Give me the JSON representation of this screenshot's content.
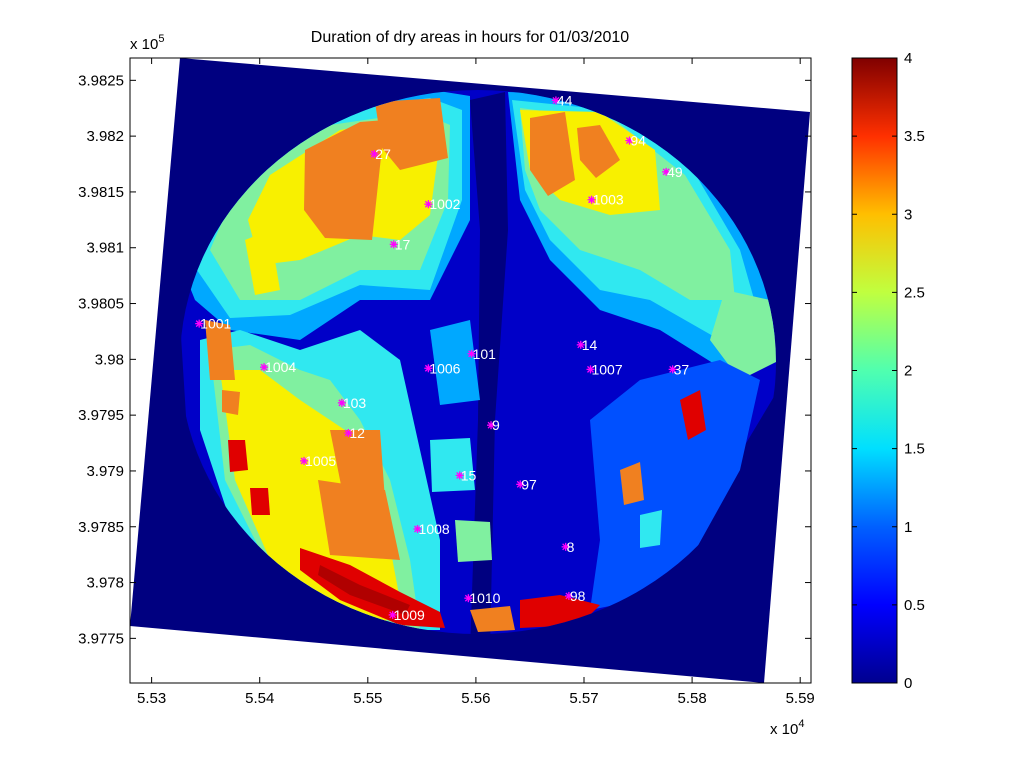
{
  "chart_data": {
    "type": "heatmap",
    "title": "Duration of dry areas in hours for 01/03/2010",
    "xlabel": "",
    "ylabel": "",
    "x_multiplier": {
      "base": "x 10",
      "exponent": "4"
    },
    "y_multiplier": {
      "base": "x 10",
      "exponent": "5"
    },
    "xlim": [
      5.528,
      5.591
    ],
    "ylim": [
      3.9771,
      3.9827
    ],
    "x_ticks": [
      5.53,
      5.54,
      5.55,
      5.56,
      5.57,
      5.58,
      5.59
    ],
    "x_tick_labels": [
      "5.53",
      "5.54",
      "5.55",
      "5.56",
      "5.57",
      "5.58",
      "5.59"
    ],
    "y_ticks": [
      3.9775,
      3.978,
      3.9785,
      3.979,
      3.9795,
      3.98,
      3.9805,
      3.981,
      3.9815,
      3.982,
      3.9825
    ],
    "y_tick_labels": [
      "3.9775",
      "3.978",
      "3.9785",
      "3.979",
      "3.9795",
      "3.98",
      "3.9805",
      "3.981",
      "3.9815",
      "3.982",
      "3.9825"
    ],
    "colorbar": {
      "colormap": "jet",
      "range": [
        0,
        4
      ],
      "ticks": [
        0,
        0.5,
        1,
        1.5,
        2,
        2.5,
        3,
        3.5,
        4
      ],
      "tick_labels": [
        "0",
        "0.5",
        "1",
        "1.5",
        "2",
        "2.5",
        "3",
        "3.5",
        "4"
      ]
    },
    "grid": false,
    "stations": [
      {
        "label": "44",
        "x": 5.5674,
        "y": 3.98232
      },
      {
        "label": "94",
        "x": 5.5742,
        "y": 3.98196
      },
      {
        "label": "27",
        "x": 5.5506,
        "y": 3.98184
      },
      {
        "label": "49",
        "x": 5.5776,
        "y": 3.98168
      },
      {
        "label": "1002",
        "x": 5.5556,
        "y": 3.98139
      },
      {
        "label": "1003",
        "x": 5.5707,
        "y": 3.98143
      },
      {
        "label": "17",
        "x": 5.5524,
        "y": 3.98103
      },
      {
        "label": "1001",
        "x": 5.5344,
        "y": 3.98032
      },
      {
        "label": "14",
        "x": 5.5697,
        "y": 3.98013
      },
      {
        "label": "101",
        "x": 5.5596,
        "y": 3.98005
      },
      {
        "label": "1004",
        "x": 5.5404,
        "y": 3.97993
      },
      {
        "label": "1006",
        "x": 5.5556,
        "y": 3.97992
      },
      {
        "label": "1007",
        "x": 5.5706,
        "y": 3.97991
      },
      {
        "label": "37",
        "x": 5.5782,
        "y": 3.97991
      },
      {
        "label": "103",
        "x": 5.5476,
        "y": 3.97961
      },
      {
        "label": "9",
        "x": 5.5614,
        "y": 3.97941
      },
      {
        "label": "12",
        "x": 5.5482,
        "y": 3.97934
      },
      {
        "label": "1005",
        "x": 5.5441,
        "y": 3.97909
      },
      {
        "label": "15",
        "x": 5.5585,
        "y": 3.97896
      },
      {
        "label": "97",
        "x": 5.5641,
        "y": 3.97888
      },
      {
        "label": "1008",
        "x": 5.5546,
        "y": 3.97848
      },
      {
        "label": "8",
        "x": 5.5683,
        "y": 3.97832
      },
      {
        "label": "98",
        "x": 5.5686,
        "y": 3.97788
      },
      {
        "label": "1010",
        "x": 5.5593,
        "y": 3.97786
      },
      {
        "label": "1009",
        "x": 5.5523,
        "y": 3.97771
      }
    ]
  },
  "colors": {
    "background": "#000080",
    "dark_blue": "#0000C8",
    "blue": "#0050FF",
    "light_blue": "#00A8FF",
    "cyan": "#30E8F0",
    "green": "#80F0A0",
    "light_green": "#B0F070",
    "yellow": "#F8F000",
    "orange": "#F08020",
    "red": "#E00000",
    "dark_red": "#880000",
    "station_marker": "#FF00FF"
  }
}
